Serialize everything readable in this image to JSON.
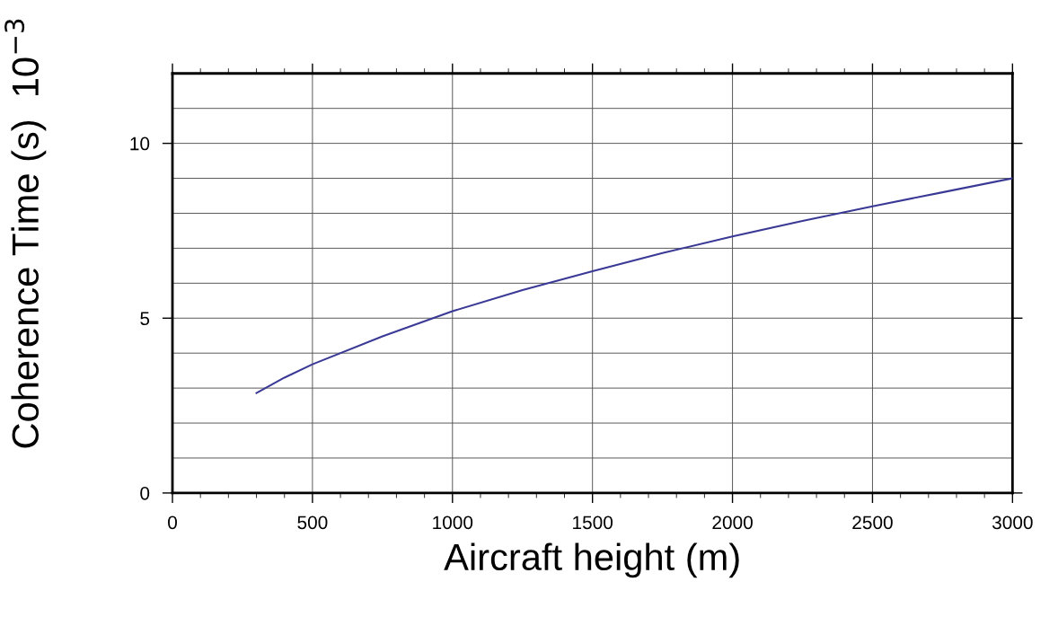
{
  "chart_data": {
    "type": "line",
    "xlabel": "Aircraft height (m)",
    "ylabel": "Coherence Time (s)  10$^{−3}$",
    "x": [
      300,
      400,
      500,
      750,
      1000,
      1250,
      1500,
      1750,
      2000,
      2250,
      2500,
      2750,
      3000
    ],
    "series": [
      {
        "color": "#3a3a96",
        "values": [
          2.86,
          3.3,
          3.68,
          4.48,
          5.2,
          5.8,
          6.34,
          6.86,
          7.34,
          7.78,
          8.2,
          8.6,
          9.0
        ]
      }
    ],
    "xlim": [
      0,
      3000
    ],
    "ylim": [
      0,
      12
    ],
    "xticks": [
      0,
      {
        "value": 100,
        "label": null
      },
      {
        "value": 200,
        "label": null
      },
      {
        "value": 300,
        "label": null
      },
      {
        "value": 400,
        "label": null
      },
      500,
      {
        "value": 600,
        "label": null
      },
      {
        "value": 700,
        "label": null
      },
      {
        "value": 800,
        "label": null
      },
      {
        "value": 900,
        "label": null
      },
      1000,
      {
        "value": 1100,
        "label": null
      },
      {
        "value": 1200,
        "label": null
      },
      {
        "value": 1300,
        "label": null
      },
      {
        "value": 1400,
        "label": null
      },
      1500,
      {
        "value": 1600,
        "label": null
      },
      {
        "value": 1700,
        "label": null
      },
      {
        "value": 1800,
        "label": null
      },
      {
        "value": 1900,
        "label": null
      },
      2000,
      {
        "value": 2100,
        "label": null
      },
      {
        "value": 2200,
        "label": null
      },
      {
        "value": 2300,
        "label": null
      },
      {
        "value": 2400,
        "label": null
      },
      2500,
      {
        "value": 2600,
        "label": null
      },
      {
        "value": 2700,
        "label": null
      },
      {
        "value": 2800,
        "label": null
      },
      {
        "value": 2900,
        "label": null
      },
      3000
    ],
    "yticks": [
      0,
      {
        "value": 1,
        "label": null
      },
      {
        "value": 2,
        "label": null
      },
      {
        "value": 3,
        "label": null
      },
      {
        "value": 4,
        "label": null
      },
      5,
      {
        "value": 6,
        "label": null
      },
      {
        "value": 7,
        "label": null
      },
      {
        "value": 8,
        "label": null
      },
      {
        "value": 9,
        "label": null
      },
      10,
      {
        "value": 11,
        "label": null
      },
      {
        "value": 12,
        "label": null
      }
    ],
    "grid": true,
    "marker": "none",
    "line_style": "solid"
  }
}
